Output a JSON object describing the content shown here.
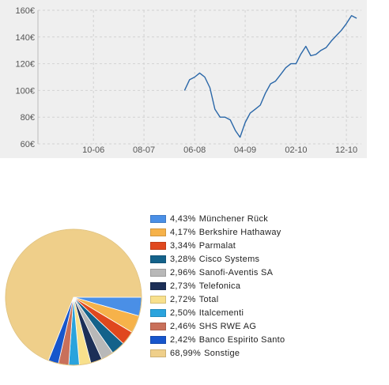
{
  "chart_data": [
    {
      "type": "line",
      "x_tick_labels": [
        "10-06",
        "08-07",
        "06-08",
        "04-09",
        "02-10",
        "12-10"
      ],
      "x_tick_dates": [
        "2006-10",
        "2007-08",
        "2008-06",
        "2009-04",
        "2010-02",
        "2010-12"
      ],
      "y_unit": "€",
      "ylim": [
        60,
        160
      ],
      "yticks": [
        60,
        80,
        100,
        120,
        140,
        160
      ],
      "ytick_labels": [
        "60€",
        "80€",
        "100€",
        "120€",
        "140€",
        "160€"
      ],
      "grid": true,
      "series": [
        {
          "color": "#2a67a8",
          "points": [
            [
              "2008-04",
              100
            ],
            [
              "2008-05",
              108
            ],
            [
              "2008-06",
              110
            ],
            [
              "2008-07",
              113
            ],
            [
              "2008-08",
              110
            ],
            [
              "2008-09",
              102
            ],
            [
              "2008-10",
              86
            ],
            [
              "2008-11",
              80
            ],
            [
              "2008-12",
              80
            ],
            [
              "2009-01",
              78
            ],
            [
              "2009-02",
              70
            ],
            [
              "2009-03",
              65
            ],
            [
              "2009-04",
              76
            ],
            [
              "2009-05",
              83
            ],
            [
              "2009-06",
              86
            ],
            [
              "2009-07",
              89
            ],
            [
              "2009-08",
              98
            ],
            [
              "2009-09",
              105
            ],
            [
              "2009-10",
              107
            ],
            [
              "2009-11",
              112
            ],
            [
              "2009-12",
              117
            ],
            [
              "2010-01",
              120
            ],
            [
              "2010-02",
              120
            ],
            [
              "2010-03",
              127
            ],
            [
              "2010-04",
              133
            ],
            [
              "2010-05",
              126
            ],
            [
              "2010-06",
              127
            ],
            [
              "2010-07",
              130
            ],
            [
              "2010-08",
              132
            ],
            [
              "2010-09",
              137
            ],
            [
              "2010-10",
              141
            ],
            [
              "2010-11",
              145
            ],
            [
              "2010-12",
              150
            ],
            [
              "2011-01",
              156
            ],
            [
              "2011-02",
              154
            ]
          ]
        }
      ]
    },
    {
      "type": "pie",
      "slices": [
        {
          "label": "Münchener Rück",
          "value_text": "4,43%",
          "value": 4.43,
          "color": "#4a8fe6"
        },
        {
          "label": "Berkshire Hathaway",
          "value_text": "4,17%",
          "value": 4.17,
          "color": "#f6b24a"
        },
        {
          "label": "Parmalat",
          "value_text": "3,34%",
          "value": 3.34,
          "color": "#e0481e"
        },
        {
          "label": "Cisco Systems",
          "value_text": "3,28%",
          "value": 3.28,
          "color": "#14628a"
        },
        {
          "label": "Sanofi-Aventis SA",
          "value_text": "2,96%",
          "value": 2.96,
          "color": "#b8b8b8"
        },
        {
          "label": "Telefonica",
          "value_text": "2,73%",
          "value": 2.73,
          "color": "#1c2f57"
        },
        {
          "label": "Total",
          "value_text": "2,72%",
          "value": 2.72,
          "color": "#f8e08c"
        },
        {
          "label": "Italcementi",
          "value_text": "2,50%",
          "value": 2.5,
          "color": "#2aa3dd"
        },
        {
          "label": "SHS RWE AG",
          "value_text": "2,46%",
          "value": 2.46,
          "color": "#c9705a"
        },
        {
          "label": "Banco Espirito Santo",
          "value_text": "2,42%",
          "value": 2.42,
          "color": "#1756cc"
        },
        {
          "label": "Sonstige",
          "value_text": "68,99%",
          "value": 68.99,
          "color": "#efcf8a"
        }
      ]
    }
  ]
}
